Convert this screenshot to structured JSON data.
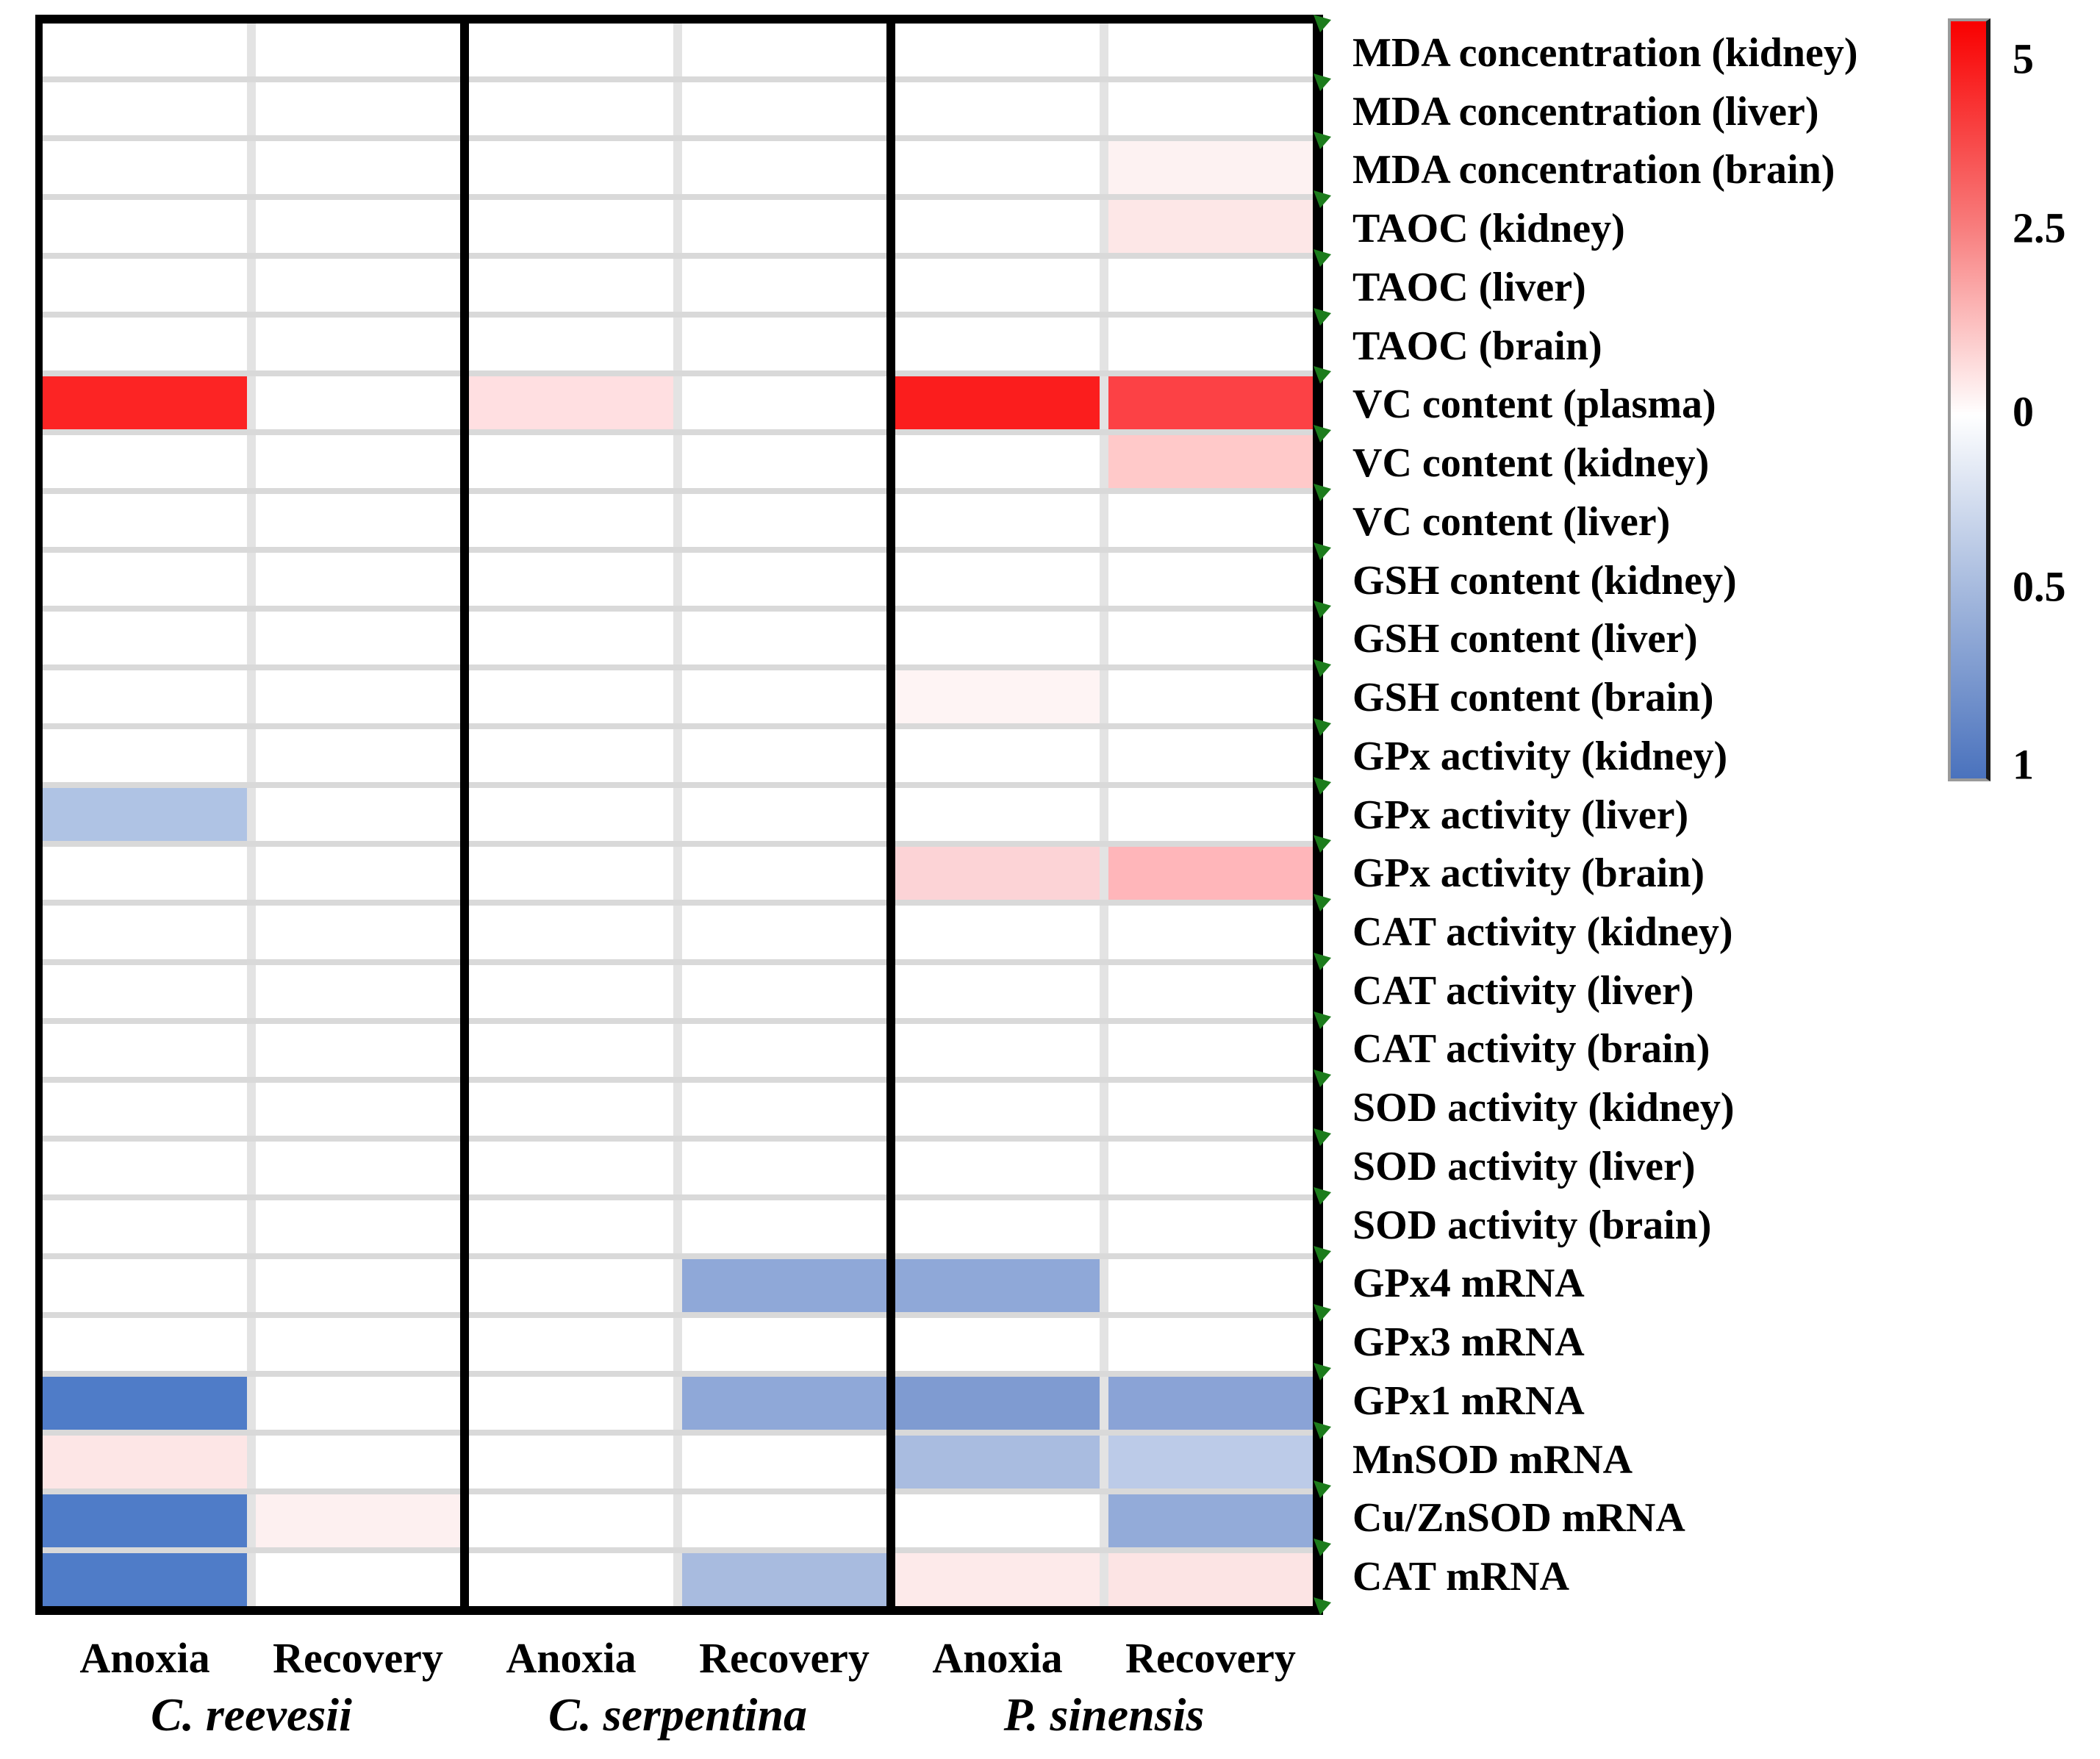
{
  "figure": {
    "heatmap": {
      "row_labels": [
        "MDA concentration (kidney)",
        "MDA concentration (liver)",
        "MDA concentration (brain)",
        "TAOC (kidney)",
        "TAOC (liver)",
        "TAOC (brain)",
        "VC content (plasma)",
        "VC content (kidney)",
        "VC content (liver)",
        "GSH content (kidney)",
        "GSH content (liver)",
        "GSH content (brain)",
        "GPx activity (kidney)",
        "GPx activity (liver)",
        "GPx activity (brain)",
        "CAT activity (kidney)",
        "CAT activity (liver)",
        "CAT activity (brain)",
        "SOD activity (kidney)",
        "SOD activity (liver)",
        "SOD activity (brain)",
        "GPx4 mRNA",
        "GPx3 mRNA",
        "GPx1 mRNA",
        "MnSOD mRNA",
        "Cu/ZnSOD mRNA",
        "CAT mRNA"
      ],
      "condition_labels": [
        "Anoxia",
        "Recovery",
        "Anoxia",
        "Recovery",
        "Anoxia",
        "Recovery"
      ],
      "species_labels": [
        "C. reevesii",
        "C. serpentina",
        "P. sinensis"
      ],
      "row_divider_color": "#d9d9d9",
      "column_divider_color": "#e3e3e3",
      "panel_border_color": "#000000",
      "marker_color": "#1c7c1c"
    },
    "colorbar": {
      "tick_labels": [
        "5",
        "2.5",
        "0",
        "0.5",
        "1"
      ],
      "tick_positions_pct": [
        5.3,
        27.5,
        51.5,
        74.5,
        97.8
      ],
      "gradient_stops": [
        {
          "pct": 0,
          "color": "#f90000"
        },
        {
          "pct": 27,
          "color": "#f87c7c"
        },
        {
          "pct": 52,
          "color": "#ffffff"
        },
        {
          "pct": 75,
          "color": "#a6bade"
        },
        {
          "pct": 100,
          "color": "#4a72bd"
        }
      ]
    }
  },
  "chart_data": {
    "type": "heatmap",
    "title": "",
    "rows": [
      "MDA concentration (kidney)",
      "MDA concentration (liver)",
      "MDA concentration (brain)",
      "TAOC (kidney)",
      "TAOC (liver)",
      "TAOC (brain)",
      "VC content (plasma)",
      "VC content (kidney)",
      "VC content (liver)",
      "GSH content (kidney)",
      "GSH content (liver)",
      "GSH content (brain)",
      "GPx activity (kidney)",
      "GPx activity (liver)",
      "GPx activity (brain)",
      "CAT activity (kidney)",
      "CAT activity (liver)",
      "CAT activity (brain)",
      "SOD activity (kidney)",
      "SOD activity (liver)",
      "SOD activity (brain)",
      "GPx4 mRNA",
      "GPx3 mRNA",
      "GPx1 mRNA",
      "MnSOD mRNA",
      "Cu/ZnSOD mRNA",
      "CAT mRNA"
    ],
    "columns": [
      {
        "species": "C. reevesii",
        "condition": "Anoxia"
      },
      {
        "species": "C. reevesii",
        "condition": "Recovery"
      },
      {
        "species": "C. serpentina",
        "condition": "Anoxia"
      },
      {
        "species": "C. serpentina",
        "condition": "Recovery"
      },
      {
        "species": "P. sinensis",
        "condition": "Anoxia"
      },
      {
        "species": "P. sinensis",
        "condition": "Recovery"
      }
    ],
    "value_encoding": "Diverging color scale: red shades = fold increase (white 0 up to red 5, mid tick 2.5); blue shades = fold decrease (white 0 down to blue 1, mid tick 0.5). Positive values below = red intensity, negative values = blue intensity.",
    "colorbar_ticks": [
      "5",
      "2.5",
      "0",
      "0.5",
      "1"
    ],
    "cell_colors": [
      [
        "#ffffff",
        "#ffffff",
        "#ffffff",
        "#ffffff",
        "#ffffff",
        "#ffffff"
      ],
      [
        "#ffffff",
        "#ffffff",
        "#ffffff",
        "#ffffff",
        "#ffffff",
        "#ffffff"
      ],
      [
        "#ffffff",
        "#ffffff",
        "#ffffff",
        "#ffffff",
        "#ffffff",
        "#fdf2f2"
      ],
      [
        "#ffffff",
        "#ffffff",
        "#ffffff",
        "#ffffff",
        "#ffffff",
        "#fde7e7"
      ],
      [
        "#ffffff",
        "#ffffff",
        "#ffffff",
        "#ffffff",
        "#ffffff",
        "#ffffff"
      ],
      [
        "#ffffff",
        "#ffffff",
        "#ffffff",
        "#ffffff",
        "#ffffff",
        "#ffffff"
      ],
      [
        "#fc2424",
        "#ffffff",
        "#ffdfe1",
        "#ffffff",
        "#fb1d1d",
        "#fc4145"
      ],
      [
        "#ffffff",
        "#ffffff",
        "#ffffff",
        "#ffffff",
        "#ffffff",
        "#ffc9c9"
      ],
      [
        "#ffffff",
        "#ffffff",
        "#ffffff",
        "#ffffff",
        "#ffffff",
        "#ffffff"
      ],
      [
        "#ffffff",
        "#ffffff",
        "#ffffff",
        "#ffffff",
        "#ffffff",
        "#ffffff"
      ],
      [
        "#ffffff",
        "#ffffff",
        "#ffffff",
        "#ffffff",
        "#ffffff",
        "#ffffff"
      ],
      [
        "#ffffff",
        "#ffffff",
        "#ffffff",
        "#ffffff",
        "#fef4f4",
        "#ffffff"
      ],
      [
        "#ffffff",
        "#ffffff",
        "#ffffff",
        "#ffffff",
        "#ffffff",
        "#ffffff"
      ],
      [
        "#afc3e4",
        "#ffffff",
        "#ffffff",
        "#ffffff",
        "#ffffff",
        "#ffffff"
      ],
      [
        "#ffffff",
        "#ffffff",
        "#ffffff",
        "#ffffff",
        "#fcd3d6",
        "#ffb6ba"
      ],
      [
        "#ffffff",
        "#ffffff",
        "#ffffff",
        "#ffffff",
        "#ffffff",
        "#ffffff"
      ],
      [
        "#ffffff",
        "#ffffff",
        "#ffffff",
        "#ffffff",
        "#ffffff",
        "#ffffff"
      ],
      [
        "#ffffff",
        "#ffffff",
        "#ffffff",
        "#ffffff",
        "#ffffff",
        "#ffffff"
      ],
      [
        "#ffffff",
        "#ffffff",
        "#ffffff",
        "#ffffff",
        "#ffffff",
        "#ffffff"
      ],
      [
        "#ffffff",
        "#ffffff",
        "#ffffff",
        "#ffffff",
        "#ffffff",
        "#ffffff"
      ],
      [
        "#ffffff",
        "#ffffff",
        "#ffffff",
        "#ffffff",
        "#ffffff",
        "#ffffff"
      ],
      [
        "#ffffff",
        "#ffffff",
        "#ffffff",
        "#8fa8d8",
        "#8fa8d8",
        "#ffffff"
      ],
      [
        "#ffffff",
        "#ffffff",
        "#ffffff",
        "#ffffff",
        "#ffffff",
        "#ffffff"
      ],
      [
        "#4f7cc8",
        "#ffffff",
        "#ffffff",
        "#8fa8d8",
        "#7f9bd1",
        "#8aa3d6"
      ],
      [
        "#fde6e6",
        "#ffffff",
        "#ffffff",
        "#ffffff",
        "#a9bce0",
        "#bccbe8"
      ],
      [
        "#4f7cc8",
        "#fdf0f0",
        "#ffffff",
        "#ffffff",
        "#ffffff",
        "#93abd9"
      ],
      [
        "#4f7cc8",
        "#ffffff",
        "#ffffff",
        "#a8bbdf",
        "#fdeaea",
        "#fce4e4"
      ]
    ],
    "cell_values": [
      [
        0,
        0,
        0,
        0,
        0,
        0
      ],
      [
        0,
        0,
        0,
        0,
        0,
        0
      ],
      [
        0,
        0,
        0,
        0,
        0,
        0.3
      ],
      [
        0,
        0,
        0,
        0,
        0,
        0.5
      ],
      [
        0,
        0,
        0,
        0,
        0,
        0
      ],
      [
        0,
        0,
        0,
        0,
        0,
        0
      ],
      [
        4.6,
        0,
        0.7,
        0,
        4.8,
        4.1
      ],
      [
        0,
        0,
        0,
        0,
        0,
        1.1
      ],
      [
        0,
        0,
        0,
        0,
        0,
        0
      ],
      [
        0,
        0,
        0,
        0,
        0,
        0
      ],
      [
        0,
        0,
        0,
        0,
        0,
        0
      ],
      [
        0,
        0,
        0,
        0,
        0.2,
        0
      ],
      [
        0,
        0,
        0,
        0,
        0,
        0
      ],
      [
        -0.45,
        0,
        0,
        0,
        0,
        0
      ],
      [
        0,
        0,
        0,
        0,
        0.9,
        1.4
      ],
      [
        0,
        0,
        0,
        0,
        0,
        0
      ],
      [
        0,
        0,
        0,
        0,
        0,
        0
      ],
      [
        0,
        0,
        0,
        0,
        0,
        0
      ],
      [
        0,
        0,
        0,
        0,
        0,
        0
      ],
      [
        0,
        0,
        0,
        0,
        0,
        0
      ],
      [
        0,
        0,
        0,
        0,
        0,
        0
      ],
      [
        0,
        0,
        0,
        -0.65,
        -0.65,
        0
      ],
      [
        0,
        0,
        0,
        0,
        0,
        0
      ],
      [
        -0.9,
        0,
        0,
        -0.65,
        -0.72,
        -0.65
      ],
      [
        0.5,
        0,
        0,
        0,
        -0.5,
        -0.4
      ],
      [
        -0.9,
        0.3,
        0,
        0,
        0,
        -0.62
      ],
      [
        -0.9,
        0,
        0,
        -0.5,
        0.4,
        0.55
      ]
    ]
  }
}
